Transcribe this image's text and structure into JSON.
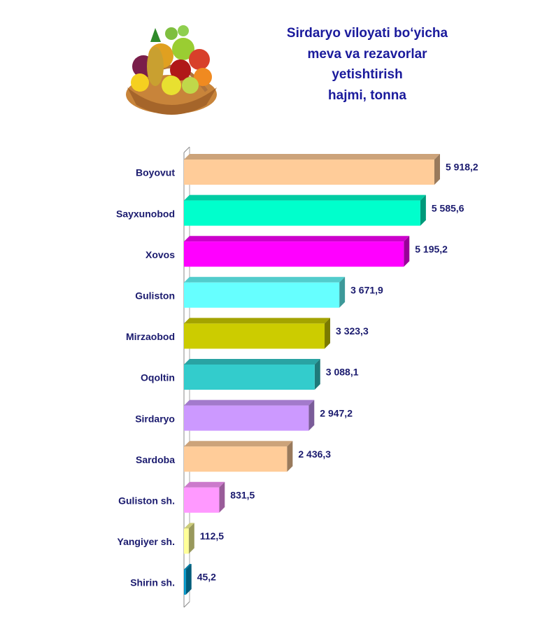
{
  "chart_data": {
    "type": "bar",
    "orientation": "horizontal",
    "title": [
      "Sirdaryo viloyati bo‘yicha",
      "meva va rezavorlar",
      "yetishtirish",
      "hajmi, tonna"
    ],
    "categories": [
      "Boyovut",
      "Sayxunobod",
      "Xovos",
      "Guliston",
      "Mirzaobod",
      "Oqoltin",
      "Sirdaryo",
      "Sardoba",
      "Guliston sh.",
      "Yangiyer sh.",
      "Shirin sh."
    ],
    "values": [
      5918.2,
      5585.6,
      5195.2,
      3671.9,
      3323.3,
      3088.1,
      2947.2,
      2436.3,
      831.5,
      112.5,
      45.2
    ],
    "value_labels": [
      "5 918,2",
      "5 585,6",
      "5 195,2",
      "3 671,9",
      "3 323,3",
      "3 088,1",
      "2 947,2",
      "2 436,3",
      "831,5",
      "112,5",
      "45,2"
    ],
    "colors": [
      "#ffcc99",
      "#00ffcc",
      "#ff00ff",
      "#66ffff",
      "#cccc00",
      "#33cccc",
      "#cc99ff",
      "#ffcc99",
      "#ff99ff",
      "#ffff99",
      "#0099cc"
    ]
  }
}
